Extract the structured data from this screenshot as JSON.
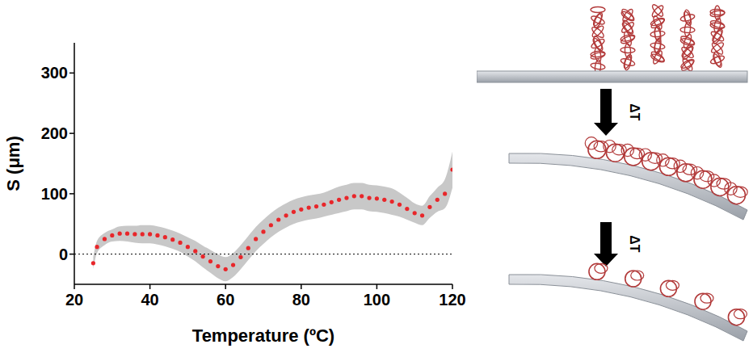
{
  "chart_data": {
    "type": "line",
    "x_label": "Temperature (ºC)",
    "y_label": "S (μm)",
    "x": [
      25,
      26,
      28,
      30,
      32,
      34,
      36,
      38,
      40,
      42,
      44,
      46,
      48,
      50,
      52,
      54,
      56,
      58,
      60,
      62,
      64,
      66,
      68,
      70,
      72,
      74,
      76,
      78,
      80,
      82,
      84,
      86,
      88,
      90,
      92,
      94,
      96,
      98,
      100,
      102,
      104,
      106,
      108,
      110,
      112,
      114,
      116,
      118,
      120
    ],
    "values": [
      -15,
      12,
      25,
      31,
      34,
      34,
      33,
      33,
      33,
      31,
      28,
      24,
      19,
      12,
      5,
      -4,
      -12,
      -20,
      -25,
      -18,
      -5,
      10,
      25,
      37,
      48,
      57,
      64,
      70,
      74,
      77,
      79,
      82,
      86,
      90,
      93,
      96,
      96,
      93,
      92,
      90,
      87,
      82,
      75,
      68,
      64,
      78,
      90,
      100,
      140
    ],
    "error": [
      10,
      10,
      10,
      10,
      12,
      13,
      14,
      15,
      15,
      15,
      15,
      15,
      15,
      16,
      17,
      18,
      19,
      20,
      20,
      20,
      20,
      20,
      20,
      20,
      20,
      20,
      20,
      20,
      20,
      20,
      20,
      20,
      21,
      22,
      22,
      22,
      22,
      22,
      22,
      22,
      22,
      20,
      18,
      16,
      16,
      18,
      20,
      24,
      30
    ],
    "color": "#e8262a",
    "marker": "circle",
    "xlim": [
      20,
      120
    ],
    "xticks": [
      20,
      40,
      60,
      80,
      100,
      120
    ],
    "ylim": [
      -50,
      350
    ],
    "yticks": [
      0,
      100,
      200,
      300
    ],
    "hlines": [
      0
    ],
    "grid": false
  },
  "diagram": {
    "arrow_labels": [
      "ΔT",
      "ΔT"
    ]
  }
}
